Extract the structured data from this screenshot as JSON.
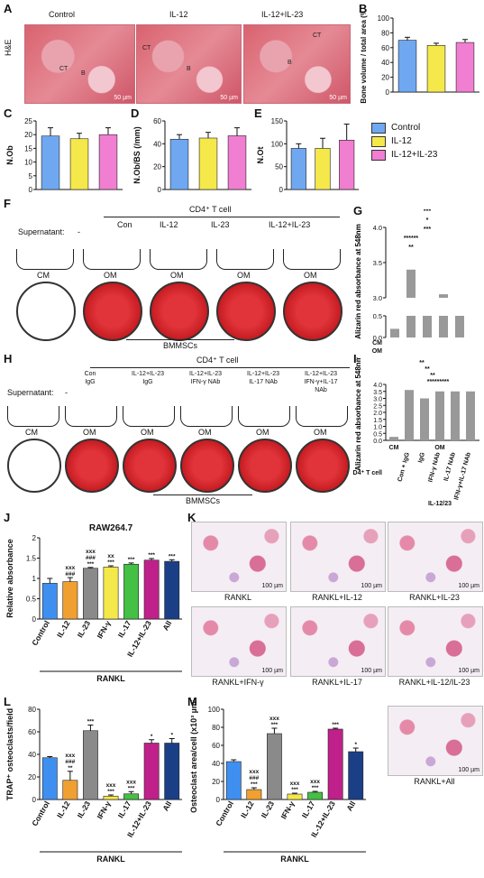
{
  "panels": {
    "A": {
      "letter": "A",
      "side_label": "H&E",
      "columns": [
        "Control",
        "IL-12",
        "IL-12+IL-23"
      ],
      "markers": [
        "CT",
        "B",
        "CT",
        "B",
        "CT",
        "B"
      ],
      "scale": "50 µm"
    },
    "B": {
      "letter": "B"
    },
    "C": {
      "letter": "C"
    },
    "D": {
      "letter": "D"
    },
    "E": {
      "letter": "E"
    },
    "F": {
      "letter": "F",
      "supernatant": "Supernatant:",
      "dash": "-",
      "group_header": "CD4⁺ T cell",
      "conds": [
        "Con",
        "IL-12",
        "IL-23",
        "IL-12+IL-23"
      ],
      "media": [
        "CM",
        "OM",
        "OM",
        "OM",
        "OM"
      ],
      "footer": "BMMSCs"
    },
    "G": {
      "letter": "G"
    },
    "H": {
      "letter": "H",
      "supernatant": "Supernatant:",
      "dash": "-",
      "group_header": "CD4⁺ T cell",
      "conds": [
        "Con\nIgG",
        "IL-12+IL-23\nIgG",
        "IL-12+IL-23\nIFN-γ NAb",
        "IL-12+IL-23\nIL-17 NAb",
        "IL-12+IL-23\nIFN-γ+IL-17\nNAb"
      ],
      "media": [
        "CM",
        "OM",
        "OM",
        "OM",
        "OM",
        "OM"
      ],
      "footer": "BMMSCs"
    },
    "I": {
      "letter": "I",
      "row_label": "CD4⁺ T cell",
      "om": "OM",
      "cm": "CM",
      "il": "IL-12/23"
    },
    "J": {
      "letter": "J",
      "title": "RAW264.7",
      "group": "RANKL"
    },
    "K": {
      "letter": "K",
      "captions": [
        "RANKL",
        "RANKL+IL-12",
        "RANKL+IL-23",
        "RANKL+IFN-γ",
        "RANKL+IL-17",
        "RANKL+IL-12/IL-23",
        "RANKL+All"
      ],
      "scale": "100 µm"
    },
    "L": {
      "letter": "L",
      "group": "RANKL"
    },
    "M": {
      "letter": "M",
      "group": "RANKL"
    }
  },
  "legend": {
    "items": [
      {
        "label": "Control",
        "color": "#6fa8f0"
      },
      {
        "label": "IL-12",
        "color": "#f5e84a"
      },
      {
        "label": "IL-12+IL-23",
        "color": "#f07ed1"
      }
    ]
  },
  "chart_data": [
    {
      "id": "B",
      "type": "bar",
      "categories": [
        "Control",
        "IL-12",
        "IL-12+IL-23"
      ],
      "values": [
        70,
        63,
        67
      ],
      "errors": [
        4,
        3,
        4
      ],
      "ylabel": "Bone volume / total area (%)",
      "ylim": [
        0,
        100
      ],
      "yticks": [
        0,
        20,
        40,
        60,
        80,
        100
      ],
      "colors": [
        "#6fa8f0",
        "#f5e84a",
        "#f07ed1"
      ]
    },
    {
      "id": "C",
      "type": "bar",
      "categories": [
        "Control",
        "IL-12",
        "IL-12+IL-23"
      ],
      "values": [
        19.5,
        18.5,
        20
      ],
      "errors": [
        3,
        2,
        2.5
      ],
      "ylabel": "N.Ob",
      "ylim": [
        0,
        25
      ],
      "yticks": [
        0,
        5,
        10,
        15,
        20,
        25
      ],
      "colors": [
        "#6fa8f0",
        "#f5e84a",
        "#f07ed1"
      ]
    },
    {
      "id": "D",
      "type": "bar",
      "categories": [
        "Control",
        "IL-12",
        "IL-12+IL-23"
      ],
      "values": [
        44,
        45,
        47
      ],
      "errors": [
        4,
        5,
        7
      ],
      "ylabel": "N.Ob/BS (/mm)",
      "ylim": [
        0,
        60
      ],
      "yticks": [
        0,
        20,
        40,
        60
      ],
      "colors": [
        "#6fa8f0",
        "#f5e84a",
        "#f07ed1"
      ]
    },
    {
      "id": "E",
      "type": "bar",
      "categories": [
        "Control",
        "IL-12",
        "IL-12+IL-23"
      ],
      "values": [
        90,
        90,
        108
      ],
      "errors": [
        10,
        22,
        35
      ],
      "ylabel": "N.Ot",
      "ylim": [
        0,
        150
      ],
      "yticks": [
        0,
        50,
        100,
        150
      ],
      "colors": [
        "#6fa8f0",
        "#f5e84a",
        "#f07ed1"
      ]
    },
    {
      "id": "G",
      "type": "bar",
      "categories": [
        "—",
        "Con",
        "IL-12",
        "IL-23",
        "IL-12/23"
      ],
      "values": [
        0.2,
        3.4,
        2.9,
        3.05,
        2.5
      ],
      "ylabel": "Alizarin red absorbance at 548nm",
      "yticks": [
        0.0,
        0.5,
        3.0,
        3.5,
        4.0
      ],
      "rows": [
        [
          "CM",
          "+",
          "-",
          "-",
          "-",
          "-"
        ],
        [
          "OM",
          "-",
          "+",
          "+",
          "+",
          "+"
        ],
        [
          "CD4⁺ T cell",
          "-",
          "Con",
          "IL-12",
          "IL-23",
          "IL-12/23"
        ]
      ],
      "sig": [
        "***",
        "*",
        "***",
        "******",
        "**"
      ],
      "colors": [
        "#999999"
      ]
    },
    {
      "id": "I",
      "type": "bar",
      "categories": [
        "—",
        "Con + IgG",
        "IgG",
        "IFN-γ NAb",
        "IL-17 NAb",
        "IFN-γ+IL-17 NAb"
      ],
      "values": [
        0.25,
        3.6,
        3.0,
        3.5,
        3.5,
        3.5
      ],
      "ylabel": "Alizarin red absorbance at 548nm",
      "yticks": [
        0.0,
        0.5,
        1.0,
        1.5,
        2.0,
        2.5,
        3.0,
        3.5,
        4.0
      ],
      "sig": [
        "**",
        "**",
        "**",
        "*********"
      ],
      "colors": [
        "#999999"
      ]
    },
    {
      "id": "J",
      "type": "bar",
      "categories": [
        "Control",
        "IL-12",
        "IL-23",
        "IFN-γ",
        "IL-17",
        "IL-12+IL-23",
        "All"
      ],
      "values": [
        0.88,
        0.92,
        1.25,
        1.28,
        1.35,
        1.45,
        1.42
      ],
      "errors": [
        0.12,
        0.1,
        0.02,
        0.03,
        0.03,
        0.04,
        0.04
      ],
      "ylabel": "Relative absorbance",
      "ylim": [
        0,
        2.0
      ],
      "yticks": [
        0.0,
        0.5,
        1.0,
        1.5,
        2.0
      ],
      "labels": [
        "",
        "xxx\n###",
        "xxx\n###\n***",
        "xx\n***",
        "***",
        "***",
        "***"
      ],
      "colors": [
        "#3f8ff0",
        "#f0a030",
        "#8a8a8a",
        "#f5e84a",
        "#44c044",
        "#c0208a",
        "#1a3f86"
      ]
    },
    {
      "id": "L",
      "type": "bar",
      "categories": [
        "Control",
        "IL-12",
        "IL-23",
        "IFN-γ",
        "IL-17",
        "IL-12+IL-23",
        "All"
      ],
      "values": [
        37,
        17,
        61,
        3,
        5,
        50,
        50
      ],
      "errors": [
        1,
        8,
        5,
        1,
        2,
        3,
        4
      ],
      "ylabel": "TRAP⁺ osteoclasts/field",
      "ylim": [
        0,
        80
      ],
      "yticks": [
        0,
        20,
        40,
        60,
        80
      ],
      "labels": [
        "",
        "xxx\n###\n**",
        "***",
        "xxx\n***",
        "xxx\n***",
        "*",
        "*"
      ],
      "colors": [
        "#3f8ff0",
        "#f0a030",
        "#8a8a8a",
        "#f5e84a",
        "#44c044",
        "#c0208a",
        "#1a3f86"
      ]
    },
    {
      "id": "M",
      "type": "bar",
      "categories": [
        "Control",
        "IL-12",
        "IL-23",
        "IFN-γ",
        "IL-17",
        "IL-12+IL-23",
        "All"
      ],
      "values": [
        42,
        11,
        73,
        6,
        8,
        78,
        53
      ],
      "errors": [
        2,
        2,
        6,
        1,
        1,
        1,
        4
      ],
      "ylabel": "Osteoclast area/cell (x10³ µm²)",
      "ylim": [
        0,
        100
      ],
      "yticks": [
        0,
        20,
        40,
        60,
        80,
        100
      ],
      "labels": [
        "",
        "xxx\n###\n***",
        "xxx\n***",
        "xxx\n***",
        "xxx\n***",
        "***",
        "*"
      ],
      "colors": [
        "#3f8ff0",
        "#f0a030",
        "#8a8a8a",
        "#f5e84a",
        "#44c044",
        "#c0208a",
        "#1a3f86"
      ]
    }
  ]
}
